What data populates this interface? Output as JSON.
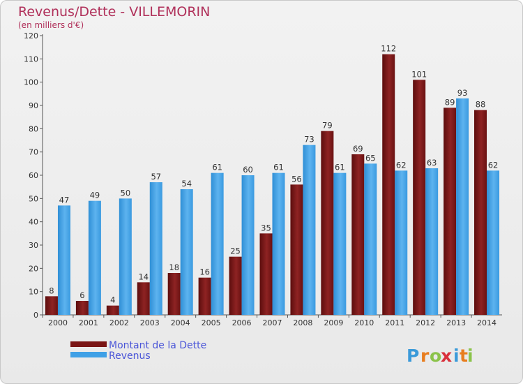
{
  "chart_data": {
    "type": "bar",
    "title": "Revenus/Dette - VILLEMORIN",
    "subtitle": "(en milliers d'€)",
    "categories": [
      "2000",
      "2001",
      "2002",
      "2003",
      "2004",
      "2005",
      "2006",
      "2007",
      "2008",
      "2009",
      "2010",
      "2011",
      "2012",
      "2013",
      "2014"
    ],
    "series": [
      {
        "name": "Montant de la Dette",
        "color": "#7a1515",
        "values": [
          8,
          6,
          4,
          14,
          18,
          16,
          25,
          35,
          56,
          79,
          69,
          112,
          101,
          89,
          88
        ]
      },
      {
        "name": "Revenus",
        "color": "#3fa0e6",
        "values": [
          47,
          49,
          50,
          57,
          54,
          61,
          60,
          61,
          73,
          61,
          65,
          62,
          63,
          93,
          62
        ]
      }
    ],
    "ylim": [
      0,
      120
    ],
    "yticks": [
      0,
      10,
      20,
      30,
      40,
      50,
      60,
      70,
      80,
      90,
      100,
      110,
      120
    ],
    "grid": false,
    "legend_position": "bottom-left"
  },
  "branding": {
    "logo_text": "Proxiti",
    "logo_letters": [
      "P",
      "r",
      "o",
      "x",
      "i",
      "t",
      "i"
    ],
    "logo_colors": [
      "#3a9ad9",
      "#e87d1e",
      "#8bc34a",
      "#d9303b",
      "#3a9ad9",
      "#e87d1e",
      "#8bc34a"
    ]
  }
}
